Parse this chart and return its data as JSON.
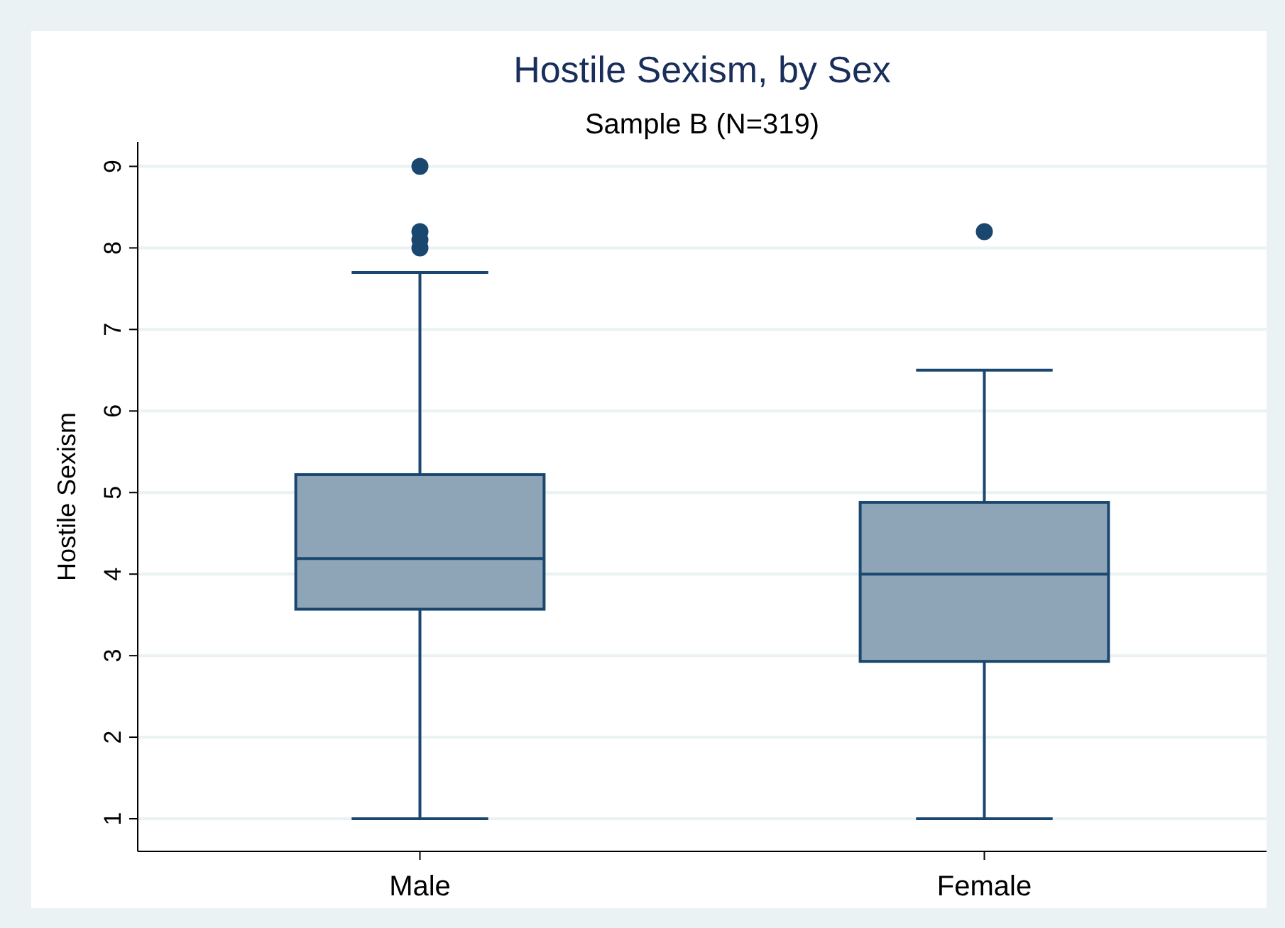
{
  "chart_data": {
    "type": "box",
    "title": "Hostile Sexism, by Sex",
    "subtitle": "Sample B (N=319)",
    "ylabel": "Hostile Sexism",
    "categories": [
      "Male",
      "Female"
    ],
    "series": [
      {
        "color": "#8ea5b8",
        "boxes": [
          {
            "low": 1,
            "q1": 3.57,
            "median": 4.19,
            "q3": 5.22,
            "high": 7.7,
            "outliers": [
              8,
              8.1,
              8.2,
              9
            ]
          },
          {
            "low": 1,
            "q1": 2.93,
            "median": 4,
            "q3": 4.88,
            "high": 6.5,
            "outliers": [
              8.2
            ]
          }
        ]
      }
    ],
    "ylim": [
      0.6,
      9.3
    ],
    "yticks": [
      1,
      2,
      3,
      4,
      5,
      6,
      7,
      8,
      9
    ],
    "grid": "y"
  }
}
